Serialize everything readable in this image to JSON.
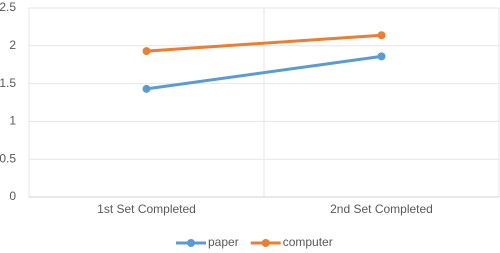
{
  "chart_data": {
    "type": "line",
    "categories": [
      "1st Set Completed",
      "2nd Set Completed"
    ],
    "series": [
      {
        "name": "paper",
        "color": "#5b9bd5",
        "values": [
          1.43,
          1.86
        ]
      },
      {
        "name": "computer",
        "color": "#ed7d31",
        "values": [
          1.93,
          2.14
        ]
      }
    ],
    "ylim": [
      0,
      2.5
    ],
    "yticks": [
      0,
      0.5,
      1,
      1.5,
      2,
      2.5
    ],
    "grid": true,
    "legend": "bottom"
  }
}
